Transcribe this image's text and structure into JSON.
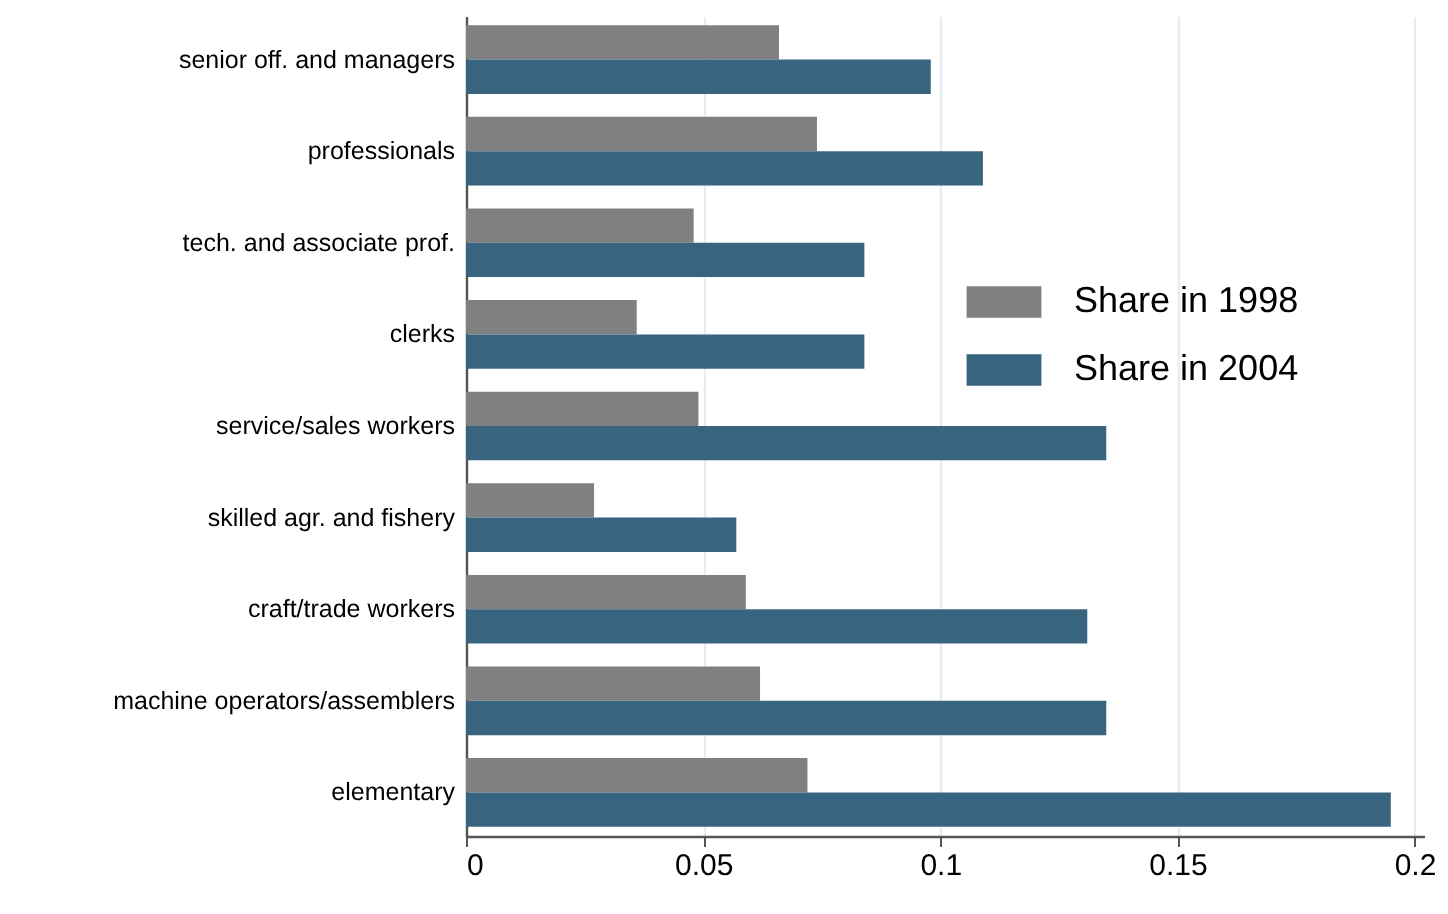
{
  "chart_data": {
    "type": "bar",
    "orientation": "horizontal",
    "categories": [
      "senior off. and managers",
      "professionals",
      "tech. and associate prof.",
      "clerks",
      "service/sales workers",
      "skilled agr. and fishery",
      "craft/trade workers",
      "machine operators/assemblers",
      "elementary"
    ],
    "series": [
      {
        "name": "Share in 1998",
        "color": "#808080",
        "values": [
          0.066,
          0.074,
          0.048,
          0.036,
          0.049,
          0.027,
          0.059,
          0.062,
          0.072
        ]
      },
      {
        "name": "Share in 2004",
        "color": "#386480",
        "values": [
          0.098,
          0.109,
          0.084,
          0.084,
          0.135,
          0.057,
          0.131,
          0.135,
          0.195
        ]
      }
    ],
    "xlim": [
      0,
      0.202
    ],
    "xticks": [
      0,
      0.05,
      0.1,
      0.15,
      0.2
    ],
    "grid": "x",
    "legend": "right"
  }
}
